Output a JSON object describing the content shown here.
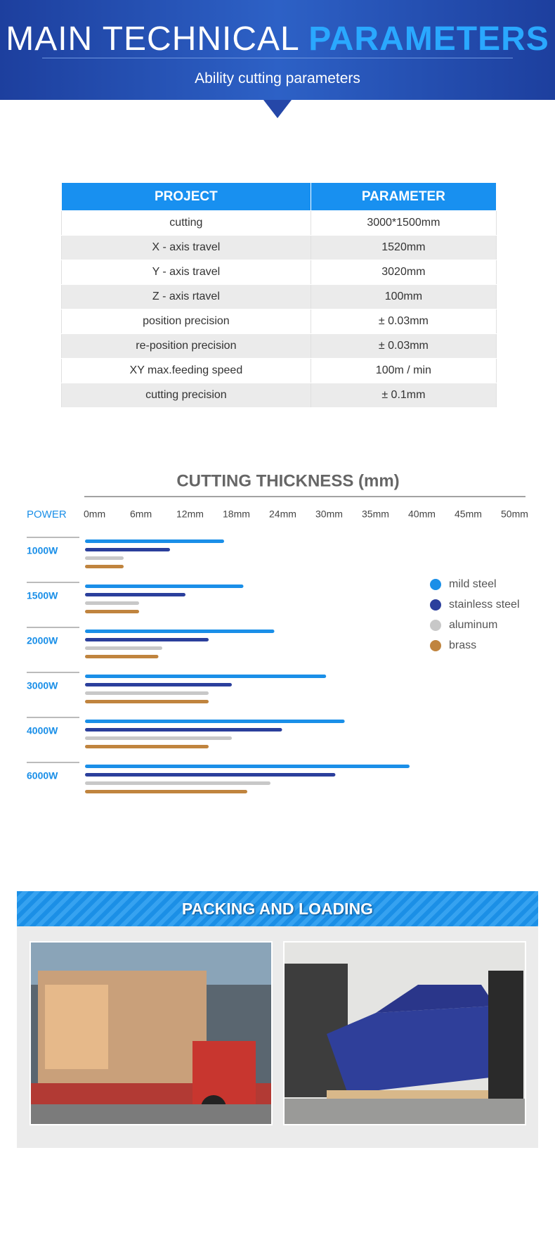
{
  "header": {
    "title_plain": "MAIN TECHNICAL",
    "title_accent": "PARAMETERS",
    "subtitle": "Ability cutting parameters"
  },
  "table": {
    "columns": [
      "PROJECT",
      "PARAMETER"
    ],
    "rows": [
      [
        "cutting",
        "3000*1500mm"
      ],
      [
        "X - axis travel",
        "1520mm"
      ],
      [
        "Y - axis travel",
        "3020mm"
      ],
      [
        "Z - axis rtavel",
        "100mm"
      ],
      [
        "position precision",
        "± 0.03mm"
      ],
      [
        "re-position precision",
        "± 0.03mm"
      ],
      [
        "XY max.feeding speed",
        "100m / min"
      ],
      [
        "cutting precision",
        "± 0.1mm"
      ]
    ]
  },
  "chart_data": {
    "type": "hbar",
    "title": "CUTTING THICKNESS (mm)",
    "y_label": "POWER",
    "categories": [
      "1000W",
      "1500W",
      "2000W",
      "3000W",
      "4000W",
      "6000W"
    ],
    "series": [
      {
        "name": "mild steel",
        "color": "#1a8fe8",
        "values": [
          18,
          20.5,
          24.5,
          31,
          33,
          40
        ]
      },
      {
        "name": "stainless steel",
        "color": "#2b3f9c",
        "values": [
          11,
          13,
          16,
          19,
          25.5,
          32
        ]
      },
      {
        "name": "aluminum",
        "color": "#c8c8c8",
        "values": [
          5,
          7,
          10,
          16,
          19,
          24
        ]
      },
      {
        "name": "brass",
        "color": "#c0843e",
        "values": [
          5,
          7,
          9.5,
          16,
          16,
          21
        ]
      }
    ],
    "xlim": [
      0,
      50
    ],
    "xticks": [
      {
        "value": 0,
        "label": "0mm"
      },
      {
        "value": 6,
        "label": "6mm"
      },
      {
        "value": 12,
        "label": "12mm"
      },
      {
        "value": 18,
        "label": "18mm"
      },
      {
        "value": 24,
        "label": "24mm"
      },
      {
        "value": 30,
        "label": "30mm"
      },
      {
        "value": 35,
        "label": "35mm"
      },
      {
        "value": 40,
        "label": "40mm"
      },
      {
        "value": 45,
        "label": "45mm"
      },
      {
        "value": 50,
        "label": "50mm"
      }
    ],
    "legend": "right"
  },
  "packing": {
    "title": "PACKING AND LOADING"
  }
}
